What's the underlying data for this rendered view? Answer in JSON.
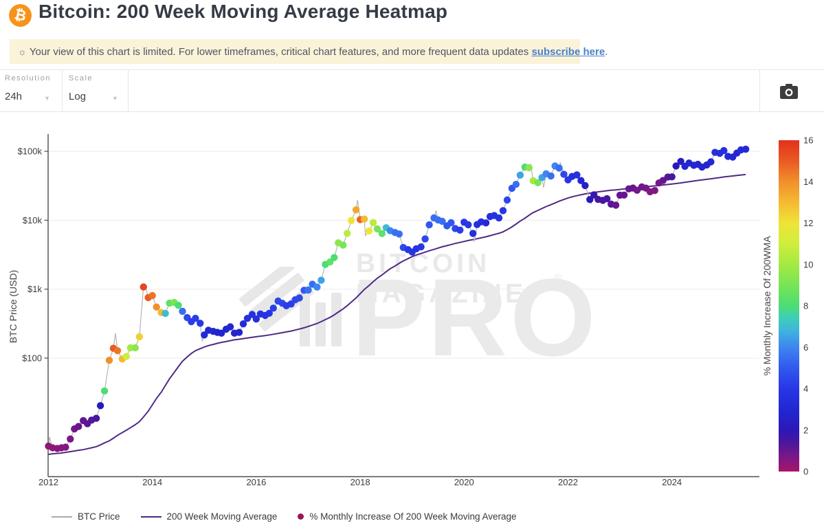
{
  "header": {
    "title": "Bitcoin: 200 Week Moving Average Heatmap",
    "logo_glyph": "₿"
  },
  "notice": {
    "icon": "☼",
    "text_before_link": "Your view of this chart is limited. For lower timeframes, critical chart features, and more frequent data updates ",
    "link_text": "subscribe here",
    "text_after_link": "."
  },
  "toolbar": {
    "resolution_label": "Resolution",
    "resolution_value": "24h",
    "scale_label": "Scale",
    "scale_value": "Log"
  },
  "watermark": {
    "line1": "BITCOIN MAGAZINE",
    "line2": "PRO",
    "reg": "®"
  },
  "chart_data": {
    "type": "scatter",
    "title": "Bitcoin: 200 Week Moving Average Heatmap",
    "ylabel": "BTC Price (USD)",
    "yticks": {
      "labels": [
        "$100k",
        "$10k",
        "$1k",
        "$100"
      ],
      "values": [
        100000,
        10000,
        1000,
        100
      ]
    },
    "xticks": [
      2012,
      2014,
      2016,
      2018,
      2020,
      2022,
      2024
    ],
    "xlim": [
      2012,
      2025.7
    ],
    "ylim": [
      1.9,
      178000
    ],
    "yscale": "log",
    "grid": "horizontal",
    "colorbar": {
      "title": "% Monthly Increase Of 200WMA",
      "ticks": [
        16,
        14,
        12,
        10,
        8,
        6,
        4,
        2,
        0
      ],
      "range": [
        0,
        16
      ],
      "stops": [
        [
          0,
          "#a8156a"
        ],
        [
          0.7,
          "#7a1886"
        ],
        [
          1.4,
          "#4c169c"
        ],
        [
          2,
          "#2b18b8"
        ],
        [
          3,
          "#2227d2"
        ],
        [
          4,
          "#2836e6"
        ],
        [
          5,
          "#3158ee"
        ],
        [
          6,
          "#3e85f1"
        ],
        [
          6.8,
          "#3eb5dd"
        ],
        [
          7.5,
          "#3fd1af"
        ],
        [
          8,
          "#4cdd74"
        ],
        [
          9,
          "#76e556"
        ],
        [
          10,
          "#a4e942"
        ],
        [
          11,
          "#cfee3c"
        ],
        [
          12,
          "#efe437"
        ],
        [
          13,
          "#f5ba31"
        ],
        [
          14,
          "#f18f2b"
        ],
        [
          15,
          "#ea5a23"
        ],
        [
          16,
          "#e3301c"
        ]
      ]
    },
    "legend": [
      {
        "label": "BTC Price",
        "type": "line",
        "color": "#aaaaaa"
      },
      {
        "label": "200 Week Moving Average",
        "type": "line",
        "color": "#4e2a84"
      },
      {
        "label": "% Monthly Increase Of 200 Week Moving Average",
        "type": "dot",
        "color": "#9b1752"
      }
    ],
    "series_note": "monthly = [year_decimal, btc_price_usd, wma200_usd, pct_monthly_increase_of_200wma]",
    "monthly": [
      [
        2012.0,
        5.3,
        4.0,
        0.4
      ],
      [
        2012.08,
        5.0,
        4.1,
        0.4
      ],
      [
        2012.17,
        4.9,
        4.15,
        0.45
      ],
      [
        2012.25,
        5.0,
        4.2,
        0.5
      ],
      [
        2012.33,
        5.1,
        4.3,
        0.55
      ],
      [
        2012.42,
        6.7,
        4.4,
        0.7
      ],
      [
        2012.5,
        9.4,
        4.5,
        0.85
      ],
      [
        2012.58,
        10.2,
        4.6,
        1.0
      ],
      [
        2012.67,
        12.4,
        4.7,
        1.1
      ],
      [
        2012.75,
        11.2,
        4.85,
        1.2
      ],
      [
        2012.83,
        12.6,
        5.0,
        1.3
      ],
      [
        2012.92,
        13.4,
        5.2,
        1.5
      ],
      [
        2013.0,
        20.4,
        5.5,
        2.2
      ],
      [
        2013.08,
        33.4,
        5.9,
        8
      ],
      [
        2013.17,
        93,
        6.3,
        14
      ],
      [
        2013.25,
        139,
        6.9,
        15
      ],
      [
        2013.33,
        128,
        7.6,
        14.5
      ],
      [
        2013.42,
        97,
        8.3,
        13
      ],
      [
        2013.5,
        106,
        9.0,
        11
      ],
      [
        2013.58,
        141,
        9.8,
        10
      ],
      [
        2013.67,
        141,
        10.8,
        9.5
      ],
      [
        2013.75,
        204,
        12,
        12.5
      ],
      [
        2013.83,
        1075,
        14,
        15.5
      ],
      [
        2013.92,
        754,
        17,
        15
      ],
      [
        2014.0,
        806,
        21,
        14.5
      ],
      [
        2014.08,
        550,
        26,
        14
      ],
      [
        2014.17,
        458,
        32,
        13
      ],
      [
        2014.25,
        446,
        40,
        7
      ],
      [
        2014.33,
        627,
        50,
        8.5
      ],
      [
        2014.42,
        640,
        62,
        9
      ],
      [
        2014.5,
        583,
        75,
        8
      ],
      [
        2014.58,
        478,
        90,
        5.5
      ],
      [
        2014.67,
        387,
        104,
        4.5
      ],
      [
        2014.75,
        338,
        117,
        4.2
      ],
      [
        2014.83,
        378,
        128,
        4.2
      ],
      [
        2014.92,
        320,
        137,
        4
      ],
      [
        2015.0,
        217,
        145,
        3.2
      ],
      [
        2015.08,
        254,
        152,
        3
      ],
      [
        2015.17,
        244,
        158,
        3
      ],
      [
        2015.25,
        236,
        164,
        2.8
      ],
      [
        2015.33,
        230,
        169,
        2.8
      ],
      [
        2015.42,
        263,
        174,
        3
      ],
      [
        2015.5,
        284,
        179,
        3
      ],
      [
        2015.58,
        230,
        184,
        2.8
      ],
      [
        2015.67,
        236,
        188,
        2.8
      ],
      [
        2015.75,
        314,
        192,
        3.2
      ],
      [
        2015.83,
        377,
        196,
        3.6
      ],
      [
        2015.92,
        430,
        200,
        3.6
      ],
      [
        2016.0,
        368,
        204,
        3.5
      ],
      [
        2016.08,
        437,
        208,
        3.8
      ],
      [
        2016.17,
        416,
        212,
        3.8
      ],
      [
        2016.25,
        448,
        217,
        4
      ],
      [
        2016.33,
        531,
        222,
        4.2
      ],
      [
        2016.42,
        673,
        228,
        4.5
      ],
      [
        2016.5,
        624,
        234,
        4.5
      ],
      [
        2016.58,
        575,
        240,
        4.2
      ],
      [
        2016.67,
        609,
        247,
        4.2
      ],
      [
        2016.75,
        700,
        255,
        4.5
      ],
      [
        2016.83,
        745,
        264,
        4.5
      ],
      [
        2016.92,
        963,
        275,
        5
      ],
      [
        2017.0,
        970,
        288,
        5.5
      ],
      [
        2017.08,
        1179,
        302,
        5.5
      ],
      [
        2017.17,
        1071,
        318,
        6
      ],
      [
        2017.25,
        1347,
        338,
        6.5
      ],
      [
        2017.33,
        2286,
        362,
        8
      ],
      [
        2017.42,
        2480,
        390,
        8.5
      ],
      [
        2017.5,
        2875,
        424,
        8
      ],
      [
        2017.58,
        4703,
        466,
        9.5
      ],
      [
        2017.67,
        4360,
        516,
        9
      ],
      [
        2017.75,
        6468,
        576,
        10.5
      ],
      [
        2017.83,
        9916,
        650,
        12
      ],
      [
        2017.92,
        14156,
        745,
        13.5
      ],
      [
        2018.0,
        10221,
        860,
        14.8
      ],
      [
        2018.08,
        10397,
        990,
        13
      ],
      [
        2018.17,
        6973,
        1130,
        12
      ],
      [
        2018.25,
        9240,
        1280,
        10.5
      ],
      [
        2018.33,
        7494,
        1440,
        9
      ],
      [
        2018.42,
        6404,
        1610,
        8.5
      ],
      [
        2018.5,
        7780,
        1790,
        7
      ],
      [
        2018.58,
        7037,
        1980,
        6
      ],
      [
        2018.67,
        6625,
        2170,
        5.5
      ],
      [
        2018.75,
        6317,
        2370,
        5.5
      ],
      [
        2018.83,
        4017,
        2570,
        4.5
      ],
      [
        2018.92,
        3742,
        2770,
        4
      ],
      [
        2019.0,
        3457,
        2970,
        3.8
      ],
      [
        2019.08,
        3854,
        3130,
        3.8
      ],
      [
        2019.17,
        4105,
        3290,
        4
      ],
      [
        2019.25,
        5350,
        3450,
        4.5
      ],
      [
        2019.33,
        8574,
        3610,
        5
      ],
      [
        2019.42,
        10817,
        3780,
        5.5
      ],
      [
        2019.5,
        10085,
        3950,
        5.5
      ],
      [
        2019.58,
        9630,
        4120,
        5.5
      ],
      [
        2019.67,
        8293,
        4280,
        5
      ],
      [
        2019.75,
        9199,
        4440,
        5
      ],
      [
        2019.83,
        7569,
        4600,
        4.5
      ],
      [
        2019.92,
        7193,
        4760,
        4.2
      ],
      [
        2020.0,
        9350,
        4920,
        4
      ],
      [
        2020.08,
        8599,
        5080,
        4
      ],
      [
        2020.17,
        6438,
        5230,
        3.5
      ],
      [
        2020.25,
        8658,
        5390,
        3.5
      ],
      [
        2020.33,
        9461,
        5560,
        3.5
      ],
      [
        2020.42,
        9137,
        5750,
        3.2
      ],
      [
        2020.5,
        11323,
        5960,
        3.5
      ],
      [
        2020.58,
        11680,
        6200,
        3.8
      ],
      [
        2020.67,
        10784,
        6470,
        3.8
      ],
      [
        2020.75,
        13781,
        6780,
        4
      ],
      [
        2020.83,
        19625,
        7300,
        4.5
      ],
      [
        2020.92,
        28994,
        8000,
        5
      ],
      [
        2021.0,
        33114,
        8800,
        5.5
      ],
      [
        2021.08,
        45137,
        9700,
        6.5
      ],
      [
        2021.17,
        58918,
        10700,
        8
      ],
      [
        2021.25,
        57750,
        11800,
        9.5
      ],
      [
        2021.33,
        37332,
        12900,
        10
      ],
      [
        2021.42,
        35040,
        13900,
        9
      ],
      [
        2021.5,
        41626,
        14800,
        6.5
      ],
      [
        2021.58,
        47166,
        15800,
        6
      ],
      [
        2021.67,
        43790,
        16800,
        5.5
      ],
      [
        2021.75,
        61318,
        17800,
        6
      ],
      [
        2021.83,
        57005,
        18900,
        5.5
      ],
      [
        2021.92,
        46306,
        20000,
        4.5
      ],
      [
        2022.0,
        38483,
        21000,
        4
      ],
      [
        2022.08,
        43193,
        21900,
        3.5
      ],
      [
        2022.17,
        45538,
        22700,
        3.5
      ],
      [
        2022.25,
        37630,
        23400,
        3
      ],
      [
        2022.33,
        31792,
        24100,
        2.5
      ],
      [
        2022.42,
        19942,
        24700,
        2
      ],
      [
        2022.5,
        23336,
        25300,
        1.8
      ],
      [
        2022.58,
        20049,
        25800,
        1.5
      ],
      [
        2022.67,
        19426,
        26300,
        1.5
      ],
      [
        2022.75,
        20495,
        26800,
        1.5
      ],
      [
        2022.83,
        17168,
        27200,
        1.2
      ],
      [
        2022.92,
        16547,
        27600,
        1
      ],
      [
        2023.0,
        23139,
        28000,
        1
      ],
      [
        2023.08,
        23147,
        28400,
        1
      ],
      [
        2023.17,
        28478,
        28800,
        1
      ],
      [
        2023.25,
        29268,
        29200,
        1
      ],
      [
        2023.33,
        27219,
        29600,
        0.8
      ],
      [
        2023.42,
        30477,
        30000,
        0.8
      ],
      [
        2023.5,
        29230,
        30500,
        0.8
      ],
      [
        2023.58,
        25931,
        31000,
        0.6
      ],
      [
        2023.67,
        26967,
        31500,
        0.6
      ],
      [
        2023.75,
        34667,
        32000,
        0.8
      ],
      [
        2023.83,
        37712,
        32500,
        1
      ],
      [
        2023.92,
        42265,
        33000,
        1.2
      ],
      [
        2024.0,
        42580,
        33500,
        1.5
      ],
      [
        2024.08,
        61198,
        34100,
        2
      ],
      [
        2024.17,
        71333,
        34800,
        2.5
      ],
      [
        2024.25,
        60636,
        35500,
        3
      ],
      [
        2024.33,
        67491,
        36200,
        3
      ],
      [
        2024.42,
        62678,
        37000,
        3
      ],
      [
        2024.5,
        64619,
        37800,
        3
      ],
      [
        2024.58,
        58969,
        38500,
        2.8
      ],
      [
        2024.67,
        63329,
        39200,
        2.8
      ],
      [
        2024.75,
        70215,
        39900,
        3
      ],
      [
        2024.83,
        96449,
        40700,
        3.5
      ],
      [
        2024.92,
        93429,
        41500,
        3.5
      ],
      [
        2025.0,
        102405,
        42500,
        3.5
      ],
      [
        2025.08,
        84373,
        43200,
        3.2
      ],
      [
        2025.17,
        82549,
        43900,
        3
      ],
      [
        2025.25,
        94207,
        44600,
        3
      ],
      [
        2025.33,
        104638,
        45300,
        3.2
      ],
      [
        2025.42,
        107135,
        46000,
        3.2
      ]
    ],
    "price_wicks": [
      [
        2012.02,
        7.2
      ],
      [
        2013.29,
        230
      ],
      [
        2013.86,
        1150
      ],
      [
        2014.96,
        175
      ],
      [
        2017.95,
        19700
      ],
      [
        2018.1,
        6000
      ],
      [
        2019.46,
        13800
      ],
      [
        2020.2,
        4900
      ],
      [
        2021.28,
        64800
      ],
      [
        2021.53,
        29800
      ],
      [
        2021.85,
        69000
      ],
      [
        2022.45,
        17600
      ],
      [
        2022.88,
        15500
      ],
      [
        2024.2,
        73800
      ],
      [
        2025.38,
        111000
      ]
    ]
  }
}
